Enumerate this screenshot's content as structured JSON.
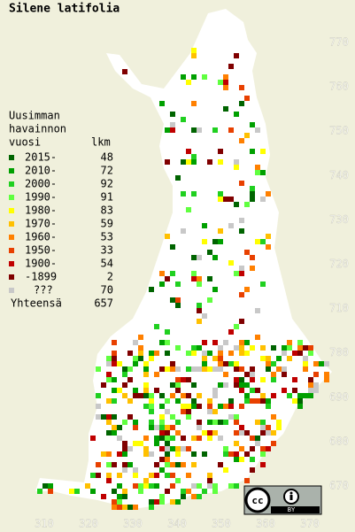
{
  "title": "Silene latifolia",
  "legend": {
    "header": [
      "Uusimman",
      "havainnon"
    ],
    "col_year": "vuosi",
    "col_count": "lkm",
    "rows": [
      {
        "label": "2015-",
        "count": 48,
        "color": "#006400"
      },
      {
        "label": "2010-",
        "count": 72,
        "color": "#00a000"
      },
      {
        "label": "2000-",
        "count": 92,
        "color": "#20d020"
      },
      {
        "label": "1990-",
        "count": 91,
        "color": "#60ff40"
      },
      {
        "label": "1980-",
        "count": 83,
        "color": "#ffff00"
      },
      {
        "label": "1970-",
        "count": 59,
        "color": "#ffc000"
      },
      {
        "label": "1960-",
        "count": 53,
        "color": "#ff8000"
      },
      {
        "label": "1950-",
        "count": 33,
        "color": "#e84000"
      },
      {
        "label": "1900-",
        "count": 54,
        "color": "#c00000"
      },
      {
        "label": "-1899",
        "count": 2,
        "color": "#800000"
      },
      {
        "label": "???",
        "count": 70,
        "color": "#c8c8c8"
      }
    ],
    "total_label": "Yhteensä",
    "total": 657
  },
  "grid": {
    "x_labels": [
      310,
      320,
      330,
      340,
      350,
      360,
      370
    ],
    "y_labels": [
      770,
      760,
      750,
      740,
      730,
      720,
      710,
      700,
      690,
      680,
      670
    ]
  },
  "badge": {
    "by": "BY"
  }
}
